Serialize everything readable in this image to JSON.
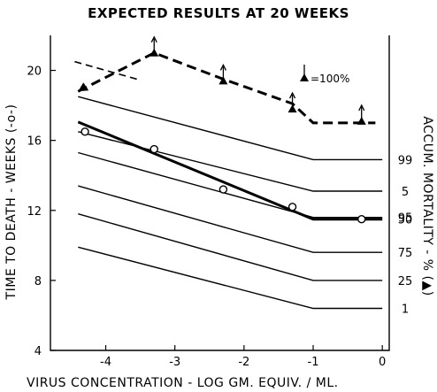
{
  "chart_data": {
    "type": "line",
    "title": "EXPECTED RESULTS AT 20 WEEKS",
    "xlabel": "VIRUS CONCENTRATION - LOG GM. EQUIV. / ML.",
    "ylabel": "TIME TO DEATH - WEEKS (-o-)",
    "ylabel_right": "ACCUM. MORTALITY - % (▲)",
    "xlim": [
      -4.8,
      0.1
    ],
    "ylim": [
      4,
      22
    ],
    "x_ticks": [
      "-4",
      "-3",
      "-2",
      "-1",
      "0"
    ],
    "y_ticks": [
      "4",
      "8",
      "12",
      "16",
      "20"
    ],
    "right_ticks": [
      "99",
      "95",
      "75",
      "50",
      "25",
      "5",
      "1"
    ],
    "legend_note": "▲=100%",
    "series": [
      {
        "name": "99",
        "x": [
          -4.4,
          -1.0,
          0.0
        ],
        "y": [
          18.5,
          14.9,
          14.9
        ]
      },
      {
        "name": "95",
        "x": [
          -4.4,
          -1.0,
          0.0
        ],
        "y": [
          15.3,
          11.6,
          11.6
        ]
      },
      {
        "name": "75",
        "x": [
          -4.4,
          -1.0,
          0.0
        ],
        "y": [
          13.4,
          9.6,
          9.6
        ]
      },
      {
        "name": "50",
        "x": [
          -4.4,
          -1.0,
          0.0
        ],
        "y": [
          17.05,
          11.5,
          11.5
        ]
      },
      {
        "name": "25",
        "x": [
          -4.4,
          -1.0,
          0.0
        ],
        "y": [
          11.8,
          8.0,
          8.0
        ]
      },
      {
        "name": "5",
        "x": [
          -4.4,
          -1.0,
          0.0
        ],
        "y": [
          16.5,
          13.1,
          13.1
        ]
      },
      {
        "name": "1",
        "x": [
          -4.4,
          -1.0,
          0.0
        ],
        "y": [
          9.9,
          6.4,
          6.4
        ]
      }
    ],
    "upper_dashed": {
      "x": [
        -4.45,
        -3.55
      ],
      "y": [
        20.5,
        19.5
      ]
    },
    "mortality_dashed": {
      "x": [
        -4.4,
        -3.3,
        -2.3,
        -1.3,
        -1.0,
        -0.3,
        -0.1
      ],
      "y": [
        18.8,
        21.0,
        19.5,
        18.1,
        17.0,
        17.0,
        17.0
      ]
    },
    "time_to_death_points": {
      "x": [
        -4.3,
        -3.3,
        -2.3,
        -1.3,
        -0.3
      ],
      "y": [
        16.5,
        15.5,
        13.2,
        12.2,
        11.5
      ]
    },
    "mortality_100_points": {
      "x": [
        -3.3,
        -2.3,
        -1.3,
        -0.3
      ],
      "y": [
        21.0,
        19.4,
        17.8,
        17.1
      ]
    }
  }
}
